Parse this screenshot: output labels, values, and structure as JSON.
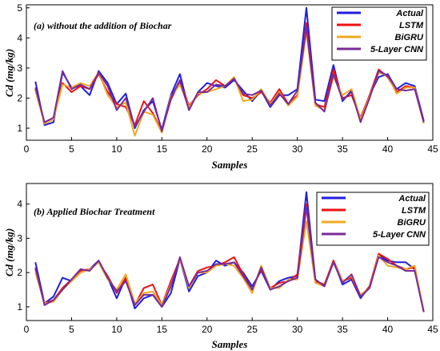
{
  "chart_data": [
    {
      "type": "line",
      "title": "(a) without the addition of Biochar",
      "xlabel": "Samples",
      "ylabel": "Cd (mg/kg)",
      "xlim": [
        0,
        45
      ],
      "ylim": [
        0.6,
        5.1
      ],
      "xticks": [
        0,
        5,
        10,
        15,
        20,
        25,
        30,
        35,
        40,
        45
      ],
      "yticks": [
        1,
        2,
        3,
        4,
        5
      ],
      "grid": false,
      "legend_position": "top-right",
      "x": [
        1,
        2,
        3,
        4,
        5,
        6,
        7,
        8,
        9,
        10,
        11,
        12,
        13,
        14,
        15,
        16,
        17,
        18,
        19,
        20,
        21,
        22,
        23,
        24,
        25,
        26,
        27,
        28,
        29,
        30,
        31,
        32,
        33,
        34,
        35,
        36,
        37,
        38,
        39,
        40,
        41,
        42,
        43,
        44
      ],
      "series": [
        {
          "name": "Actual",
          "color": "#1f1fe0",
          "values": [
            2.55,
            1.1,
            1.2,
            2.85,
            2.35,
            2.4,
            2.1,
            2.9,
            2.5,
            1.8,
            2.15,
            1.0,
            1.6,
            1.9,
            0.95,
            2.1,
            2.8,
            1.6,
            2.2,
            2.5,
            2.4,
            2.35,
            2.6,
            2.25,
            1.9,
            2.25,
            1.7,
            2.1,
            2.1,
            2.3,
            5.0,
            1.95,
            1.9,
            3.1,
            1.9,
            2.25,
            1.25,
            2.1,
            2.7,
            2.8,
            2.3,
            2.5,
            2.4,
            1.25
          ]
        },
        {
          "name": "LSTM",
          "color": "#ee1111",
          "values": [
            2.3,
            1.15,
            1.35,
            2.5,
            2.2,
            2.4,
            2.3,
            2.8,
            2.2,
            1.8,
            1.7,
            1.1,
            1.9,
            1.5,
            0.9,
            1.95,
            2.55,
            1.75,
            2.1,
            2.3,
            2.6,
            2.4,
            2.65,
            2.1,
            2.0,
            2.2,
            1.85,
            2.3,
            1.8,
            2.1,
            4.5,
            1.8,
            1.7,
            2.95,
            2.0,
            2.1,
            1.35,
            2.1,
            2.95,
            2.7,
            2.2,
            2.4,
            2.35,
            1.2
          ]
        },
        {
          "name": "BiGRU",
          "color": "#f0a820",
          "values": [
            2.25,
            1.15,
            1.3,
            2.45,
            2.35,
            2.5,
            2.4,
            2.85,
            2.1,
            1.7,
            1.85,
            0.75,
            1.55,
            1.45,
            0.85,
            2.05,
            2.45,
            1.7,
            2.15,
            2.2,
            2.3,
            2.4,
            2.7,
            1.9,
            1.95,
            2.3,
            1.8,
            2.2,
            1.75,
            2.05,
            4.2,
            1.75,
            1.6,
            2.7,
            2.1,
            2.3,
            1.3,
            2.05,
            2.85,
            2.75,
            2.15,
            2.35,
            2.35,
            1.15
          ]
        },
        {
          "name": "5-Layer CNN",
          "color": "#7a2a9a",
          "values": [
            2.35,
            1.2,
            1.35,
            2.9,
            2.3,
            2.45,
            2.3,
            2.85,
            2.4,
            1.6,
            2.0,
            1.05,
            1.55,
            2.0,
            0.9,
            2.0,
            2.6,
            1.6,
            2.2,
            2.2,
            2.45,
            2.4,
            2.65,
            2.15,
            2.1,
            2.25,
            1.75,
            2.15,
            1.8,
            2.25,
            4.35,
            1.85,
            1.55,
            2.8,
            1.95,
            2.2,
            1.2,
            2.0,
            2.9,
            2.75,
            2.3,
            2.25,
            2.3,
            1.2
          ]
        }
      ]
    },
    {
      "type": "line",
      "title": "(b) Applied Biochar Treatment",
      "xlabel": "Samples",
      "ylabel": "Cd (mg/kg)",
      "xlim": [
        0,
        45
      ],
      "ylim": [
        0.6,
        4.6
      ],
      "xticks": [
        0,
        5,
        10,
        15,
        20,
        25,
        30,
        35,
        40,
        45
      ],
      "yticks": [
        1,
        2,
        3,
        4
      ],
      "grid": false,
      "legend_position": "top-right",
      "x": [
        1,
        2,
        3,
        4,
        5,
        6,
        7,
        8,
        9,
        10,
        11,
        12,
        13,
        14,
        15,
        16,
        17,
        18,
        19,
        20,
        21,
        22,
        23,
        24,
        25,
        26,
        27,
        28,
        29,
        30,
        31,
        32,
        33,
        34,
        35,
        36,
        37,
        38,
        39,
        40,
        41,
        42,
        43,
        44
      ],
      "series": [
        {
          "name": "Actual",
          "color": "#1f1fe0",
          "values": [
            2.3,
            1.1,
            1.3,
            1.85,
            1.75,
            2.0,
            2.1,
            2.35,
            1.85,
            1.25,
            1.85,
            0.95,
            1.25,
            1.35,
            1.0,
            1.4,
            2.4,
            1.45,
            1.9,
            2.0,
            2.35,
            2.2,
            2.3,
            2.0,
            1.6,
            2.05,
            1.5,
            1.75,
            1.85,
            1.9,
            4.35,
            1.8,
            1.6,
            2.35,
            1.65,
            1.8,
            1.25,
            1.6,
            2.5,
            2.35,
            2.3,
            2.3,
            2.1,
            0.85
          ]
        },
        {
          "name": "LSTM",
          "color": "#ee1111",
          "values": [
            2.1,
            1.1,
            1.2,
            1.55,
            1.8,
            2.05,
            2.1,
            2.3,
            1.9,
            1.4,
            1.85,
            1.05,
            1.55,
            1.65,
            1.05,
            1.75,
            2.4,
            1.6,
            2.05,
            2.15,
            2.2,
            2.3,
            2.45,
            1.95,
            1.5,
            2.1,
            1.55,
            1.7,
            1.75,
            1.95,
            4.0,
            1.75,
            1.65,
            2.35,
            1.75,
            1.85,
            1.3,
            1.6,
            2.55,
            2.4,
            2.2,
            2.1,
            2.15,
            0.85
          ]
        },
        {
          "name": "BiGRU",
          "color": "#f0a820",
          "values": [
            2.0,
            1.1,
            1.15,
            1.5,
            1.75,
            2.0,
            2.1,
            2.3,
            1.8,
            1.5,
            1.95,
            1.1,
            1.4,
            1.45,
            1.05,
            1.65,
            2.4,
            1.55,
            2.0,
            2.0,
            2.2,
            2.25,
            2.2,
            1.85,
            1.4,
            2.2,
            1.55,
            1.55,
            1.8,
            1.8,
            3.5,
            1.7,
            1.6,
            2.3,
            1.75,
            1.9,
            1.35,
            1.55,
            2.5,
            2.2,
            2.15,
            2.1,
            2.2,
            0.85
          ]
        },
        {
          "name": "5-Layer CNN",
          "color": "#7a2a9a",
          "values": [
            2.15,
            1.05,
            1.2,
            1.5,
            1.8,
            2.1,
            2.05,
            2.35,
            1.85,
            1.45,
            1.75,
            1.05,
            1.35,
            1.35,
            1.0,
            1.6,
            2.45,
            1.6,
            2.0,
            2.05,
            2.25,
            2.25,
            2.3,
            1.9,
            1.5,
            2.15,
            1.5,
            1.6,
            1.75,
            1.85,
            3.9,
            1.8,
            1.6,
            2.3,
            1.7,
            1.95,
            1.3,
            1.55,
            2.45,
            2.3,
            2.2,
            2.05,
            2.05,
            0.85
          ]
        }
      ]
    }
  ]
}
